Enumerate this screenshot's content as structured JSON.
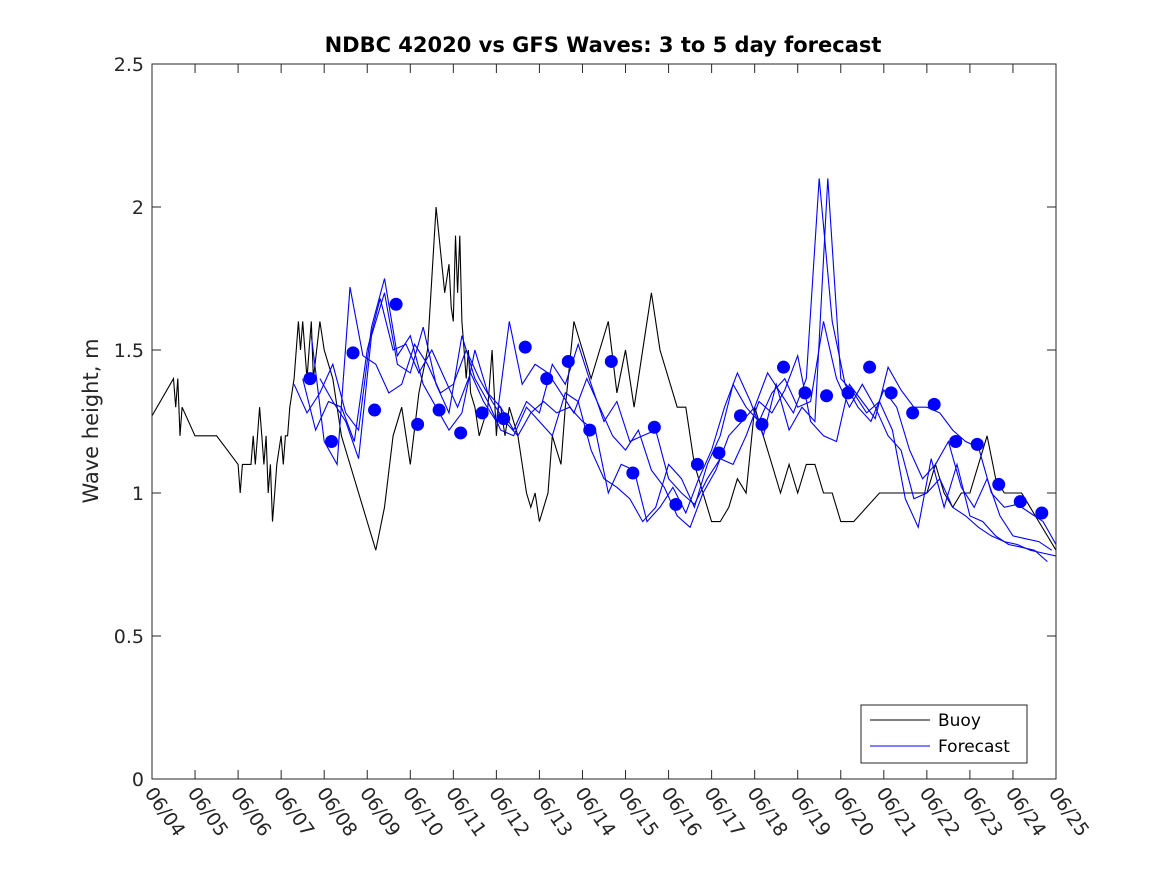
{
  "chart_data": {
    "type": "line",
    "title": "NDBC 42020 vs GFS Waves: 3 to 5 day forecast",
    "xlabel": "",
    "ylabel": "Wave height, m",
    "x_ticks": [
      "06/04",
      "06/05",
      "06/06",
      "06/07",
      "06/08",
      "06/09",
      "06/10",
      "06/11",
      "06/12",
      "06/13",
      "06/14",
      "06/15",
      "06/16",
      "06/17",
      "06/18",
      "06/19",
      "06/20",
      "06/21",
      "06/22",
      "06/23",
      "06/24",
      "06/25"
    ],
    "y_ticks": [
      "0",
      "0.5",
      "1",
      "1.5",
      "2",
      "2.5"
    ],
    "xlim_days": [
      0,
      21
    ],
    "ylim": [
      0,
      2.5
    ],
    "grid": false,
    "legend_position": "bottom-right",
    "colors": {
      "buoy": "#000000",
      "forecast": "#0000ff"
    },
    "series": [
      {
        "name": "Buoy",
        "style": "line",
        "x": [
          0,
          0.5,
          0.55,
          0.6,
          0.65,
          0.7,
          1.0,
          1.5,
          2.0,
          2.05,
          2.1,
          2.3,
          2.35,
          2.4,
          2.45,
          2.5,
          2.55,
          2.6,
          2.65,
          2.7,
          2.75,
          2.8,
          2.85,
          2.9,
          3.0,
          3.05,
          3.1,
          3.15,
          3.2,
          3.3,
          3.4,
          3.45,
          3.5,
          3.6,
          3.65,
          3.7,
          3.75,
          3.9,
          4.0,
          4.2,
          4.4,
          4.6,
          4.8,
          5.0,
          5.2,
          5.4,
          5.6,
          5.8,
          6.0,
          6.2,
          6.4,
          6.6,
          6.8,
          6.9,
          6.95,
          7.0,
          7.05,
          7.1,
          7.15,
          7.2,
          7.25,
          7.3,
          7.35,
          7.4,
          7.5,
          7.6,
          7.7,
          7.8,
          7.9,
          8.0,
          8.05,
          8.1,
          8.2,
          8.3,
          8.4,
          8.5,
          8.6,
          8.7,
          8.8,
          8.9,
          9.0,
          9.1,
          9.2,
          9.3,
          9.4,
          9.5,
          9.6,
          9.7,
          9.8,
          10.0,
          10.2,
          10.4,
          10.6,
          10.8,
          11.0,
          11.2,
          11.4,
          11.6,
          11.8,
          12.0,
          12.2,
          12.4,
          12.6,
          12.8,
          13.0,
          13.2,
          13.4,
          13.6,
          13.8,
          14.0,
          14.2,
          14.4,
          14.6,
          14.8,
          15.0,
          15.2,
          15.4,
          15.6,
          15.8,
          16.0,
          16.3,
          16.6,
          16.9,
          17.2,
          17.5,
          17.8,
          18.0,
          18.2,
          18.4,
          18.6,
          18.8,
          19.0,
          19.2,
          19.4,
          19.6,
          19.8,
          20.0,
          20.2,
          20.4,
          20.6,
          20.8,
          21.0
        ],
        "y": [
          1.27,
          1.4,
          1.3,
          1.4,
          1.2,
          1.3,
          1.2,
          1.2,
          1.1,
          1.0,
          1.1,
          1.1,
          1.2,
          1.1,
          1.2,
          1.3,
          1.2,
          1.1,
          1.2,
          1.0,
          1.1,
          0.9,
          1.0,
          1.1,
          1.2,
          1.1,
          1.2,
          1.2,
          1.3,
          1.4,
          1.6,
          1.5,
          1.6,
          1.4,
          1.5,
          1.6,
          1.4,
          1.6,
          1.5,
          1.4,
          1.2,
          1.1,
          1.0,
          0.9,
          0.8,
          0.95,
          1.2,
          1.3,
          1.1,
          1.35,
          1.5,
          2.0,
          1.7,
          1.8,
          1.65,
          1.6,
          1.9,
          1.7,
          1.9,
          1.6,
          1.5,
          1.4,
          1.5,
          1.35,
          1.3,
          1.2,
          1.25,
          1.3,
          1.5,
          1.2,
          1.3,
          1.3,
          1.2,
          1.3,
          1.25,
          1.2,
          1.1,
          1.0,
          0.95,
          1.0,
          0.9,
          0.95,
          1.0,
          1.2,
          1.15,
          1.1,
          1.3,
          1.45,
          1.6,
          1.5,
          1.4,
          1.5,
          1.6,
          1.35,
          1.5,
          1.3,
          1.5,
          1.7,
          1.5,
          1.4,
          1.3,
          1.3,
          1.1,
          1.0,
          0.9,
          0.9,
          0.95,
          1.05,
          1.0,
          1.3,
          1.2,
          1.1,
          1.0,
          1.1,
          1.0,
          1.1,
          1.1,
          1.0,
          1.0,
          0.9,
          0.9,
          0.95,
          1.0,
          1.0,
          1.0,
          1.0,
          1.0,
          1.1,
          1.0,
          0.95,
          1.0,
          1.0,
          1.1,
          1.2,
          1.05,
          1.0,
          1.0,
          1.0,
          0.95,
          0.9,
          0.85,
          0.8
        ]
      },
      {
        "name": "Forecast",
        "style": "line",
        "lines": [
          {
            "x": [
              3.3,
              3.6,
              3.9,
              4.2,
              4.5,
              4.8,
              5.1,
              5.4,
              5.7,
              6.0,
              6.3,
              6.6,
              6.9,
              7.2,
              7.5,
              7.8,
              8.1,
              8.4,
              8.7,
              9.0,
              9.3,
              9.6,
              9.9,
              10.2,
              10.5,
              10.8,
              11.1,
              11.4,
              11.7,
              12.0,
              12.3,
              12.6,
              12.9,
              13.2,
              13.5,
              13.8,
              14.1,
              14.4,
              14.7,
              15.0,
              15.3,
              15.6,
              15.9,
              16.2,
              16.5,
              16.8,
              17.1,
              17.4,
              17.7,
              18.0,
              18.3,
              18.6,
              18.9,
              19.2,
              19.5,
              19.8,
              20.1,
              20.4,
              20.7,
              21.0
            ],
            "y": [
              1.38,
              1.28,
              1.35,
              1.45,
              1.28,
              1.22,
              1.58,
              1.75,
              1.48,
              1.55,
              1.38,
              1.3,
              1.22,
              1.28,
              1.5,
              1.35,
              1.3,
              1.22,
              1.32,
              1.28,
              1.45,
              1.38,
              1.52,
              1.38,
              1.25,
              1.32,
              1.18,
              1.2,
              1.22,
              1.05,
              1.0,
              0.96,
              1.05,
              1.12,
              1.1,
              1.2,
              1.32,
              1.28,
              1.36,
              1.48,
              1.25,
              1.2,
              1.18,
              1.38,
              1.32,
              1.26,
              1.44,
              1.36,
              1.3,
              1.3,
              1.28,
              1.22,
              1.18,
              1.16,
              1.0,
              0.95,
              0.96,
              0.93,
              0.9,
              0.82
            ]
          },
          {
            "x": [
              3.5,
              3.8,
              4.1,
              4.4,
              4.7,
              5.0,
              5.3,
              5.6,
              5.9,
              6.2,
              6.5,
              6.8,
              7.1,
              7.4,
              7.7,
              8.0,
              8.3,
              8.6,
              8.9,
              9.2,
              9.5,
              9.8,
              10.1,
              10.4,
              10.7,
              11.0,
              11.3,
              11.6,
              11.9,
              12.2,
              12.5,
              12.8,
              13.1,
              13.4,
              13.7,
              14.0,
              14.3,
              14.6,
              14.9,
              15.2,
              15.5,
              15.8,
              16.1,
              16.4,
              16.7,
              17.0,
              17.3,
              17.6,
              17.9,
              18.2,
              18.5,
              18.8,
              19.1,
              19.4,
              19.7,
              20.0,
              20.3,
              20.6,
              20.9
            ],
            "y": [
              1.4,
              1.22,
              1.32,
              1.3,
              1.18,
              1.5,
              1.68,
              1.5,
              1.52,
              1.42,
              1.5,
              1.4,
              1.3,
              1.42,
              1.32,
              1.25,
              1.6,
              1.38,
              1.45,
              1.42,
              1.35,
              1.28,
              1.4,
              1.3,
              1.2,
              1.15,
              1.22,
              1.08,
              1.02,
              0.92,
              0.88,
              1.0,
              1.08,
              1.2,
              1.25,
              1.3,
              1.42,
              1.35,
              1.28,
              1.4,
              2.1,
              1.6,
              1.38,
              1.3,
              1.25,
              1.36,
              1.3,
              1.15,
              1.05,
              1.1,
              1.18,
              1.02,
              0.95,
              1.05,
              0.92,
              0.85,
              0.84,
              0.83,
              0.8
            ]
          },
          {
            "x": [
              3.7,
              4.0,
              4.3,
              4.6,
              4.9,
              5.2,
              5.5,
              5.8,
              6.1,
              6.4,
              6.7,
              7.0,
              7.3,
              7.6,
              7.9,
              8.2,
              8.5,
              8.8,
              9.1,
              9.4,
              9.7,
              10.0,
              10.3,
              10.6,
              10.9,
              11.2,
              11.5,
              11.8,
              12.1,
              12.4,
              12.7,
              13.0,
              13.3,
              13.6,
              13.9,
              14.2,
              14.5,
              14.8,
              15.1,
              15.4,
              15.7,
              16.0,
              16.3,
              16.6,
              16.9,
              17.2,
              17.5,
              17.8,
              18.1,
              18.4,
              18.7,
              19.0,
              19.3,
              19.6,
              19.9,
              20.2,
              20.5,
              20.8
            ],
            "y": [
              1.55,
              1.18,
              1.1,
              1.72,
              1.48,
              1.45,
              1.35,
              1.38,
              1.52,
              1.45,
              1.35,
              1.38,
              1.5,
              1.4,
              1.32,
              1.25,
              1.2,
              1.28,
              1.32,
              1.28,
              1.3,
              1.25,
              1.22,
              1.0,
              1.1,
              1.08,
              0.9,
              0.95,
              1.02,
              0.93,
              1.05,
              1.15,
              1.3,
              1.42,
              1.32,
              1.2,
              1.38,
              1.22,
              1.3,
              1.25,
              2.1,
              1.4,
              1.35,
              1.28,
              1.32,
              1.22,
              0.98,
              0.88,
              1.12,
              0.95,
              1.1,
              0.92,
              0.9,
              0.85,
              0.82,
              0.81,
              0.8,
              0.76
            ]
          },
          {
            "x": [
              3.9,
              4.2,
              4.5,
              4.8,
              5.1,
              5.4,
              5.7,
              6.0,
              6.3,
              6.6,
              6.9,
              7.2,
              7.5,
              7.8,
              8.1,
              8.4,
              8.7,
              9.0,
              9.3,
              9.6,
              9.9,
              10.2,
              10.5,
              10.8,
              11.1,
              11.4,
              11.7,
              12.0,
              12.3,
              12.6,
              12.9,
              13.2,
              13.5,
              13.8,
              14.1,
              14.4,
              14.7,
              15.0,
              15.3,
              15.6,
              15.9,
              16.2,
              16.5,
              16.8,
              17.1,
              17.4,
              17.7,
              18.0,
              18.3,
              18.6,
              18.9,
              19.2,
              19.5,
              19.8,
              20.1,
              20.4,
              20.7,
              21.0
            ],
            "y": [
              1.4,
              1.32,
              1.25,
              1.12,
              1.55,
              1.7,
              1.45,
              1.42,
              1.58,
              1.38,
              1.28,
              1.55,
              1.4,
              1.32,
              1.22,
              1.2,
              1.3,
              1.25,
              1.2,
              1.35,
              1.32,
              1.15,
              1.05,
              1.02,
              0.98,
              0.9,
              0.95,
              1.1,
              1.05,
              0.95,
              1.1,
              1.2,
              1.38,
              1.3,
              1.25,
              1.35,
              1.4,
              1.3,
              1.32,
              1.6,
              1.4,
              1.3,
              1.38,
              1.3,
              1.2,
              1.15,
              0.98,
              1.0,
              1.05,
              0.95,
              0.92,
              0.88,
              0.85,
              0.83,
              0.82,
              0.8,
              0.79,
              0.78
            ]
          }
        ]
      },
      {
        "name": "",
        "style": "markers",
        "x": [
          3.67,
          4.17,
          4.67,
          5.17,
          5.67,
          6.17,
          6.67,
          7.17,
          7.67,
          8.17,
          8.67,
          9.17,
          9.67,
          10.17,
          10.67,
          11.17,
          11.67,
          12.17,
          12.67,
          13.17,
          13.67,
          14.17,
          14.67,
          15.17,
          15.67,
          16.17,
          16.67,
          17.17,
          17.67,
          18.17,
          18.67,
          19.17,
          19.67,
          20.17,
          20.67
        ],
        "y": [
          1.4,
          1.18,
          1.49,
          1.29,
          1.66,
          1.24,
          1.29,
          1.21,
          1.28,
          1.26,
          1.51,
          1.4,
          1.46,
          1.22,
          1.46,
          1.07,
          1.23,
          0.96,
          1.1,
          1.14,
          1.27,
          1.24,
          1.44,
          1.35,
          1.34,
          1.35,
          1.44,
          1.35,
          1.28,
          1.31,
          1.18,
          1.17,
          1.03,
          0.97,
          0.93
        ]
      }
    ]
  }
}
